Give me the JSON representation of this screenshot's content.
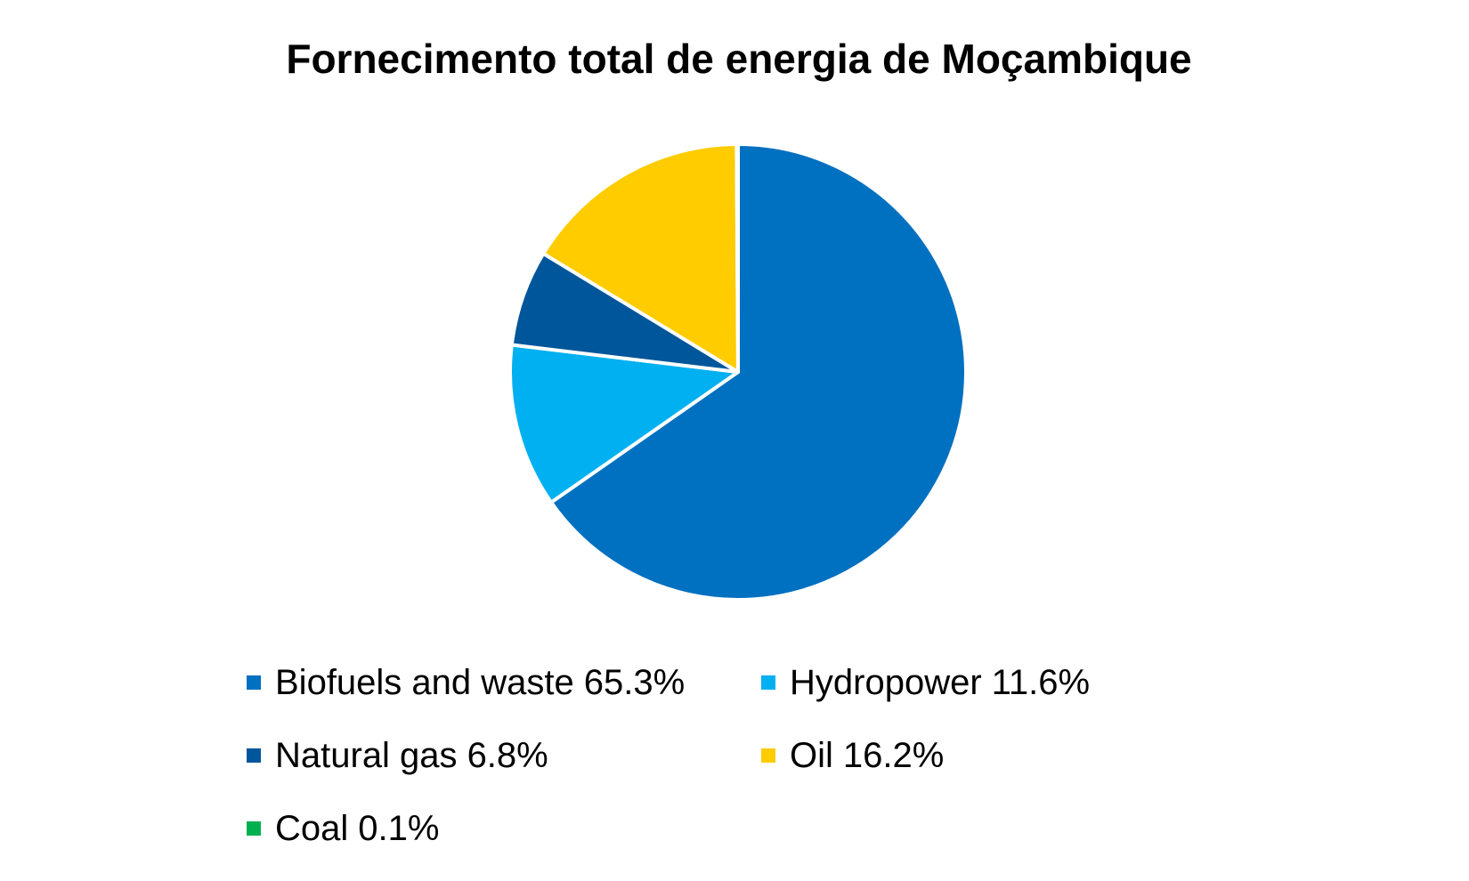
{
  "chart_data": {
    "type": "pie",
    "title": "Fornecimento total de energia de Moçambique",
    "categories": [
      "Biofuels and waste",
      "Hydropower",
      "Natural gas",
      "Oil",
      "Coal"
    ],
    "values": [
      65.3,
      11.6,
      6.8,
      16.2,
      0.1
    ],
    "value_labels": [
      "65.3%",
      "11.6%",
      "6.8%",
      "16.2%",
      "0.1%"
    ],
    "colors": [
      "#0070c0",
      "#00b0f0",
      "#00569a",
      "#ffcc00",
      "#00b050"
    ],
    "legend": "bottom"
  }
}
